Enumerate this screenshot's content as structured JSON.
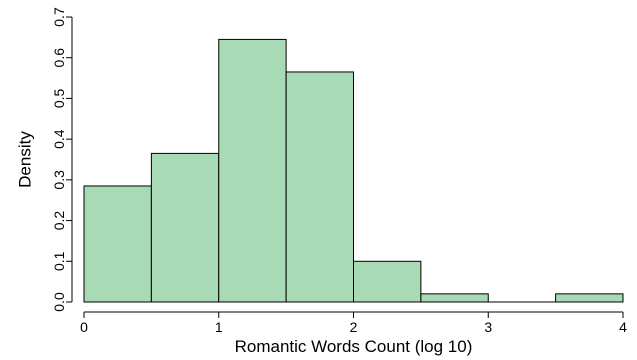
{
  "chart_data": {
    "type": "bar",
    "subtype": "histogram",
    "xlabel": "Romantic Words Count (log 10)",
    "ylabel": "Density",
    "xlim": [
      0,
      4
    ],
    "ylim": [
      0,
      0.7
    ],
    "x_ticks": [
      0,
      1,
      2,
      3,
      4
    ],
    "y_ticks": [
      0.0,
      0.1,
      0.2,
      0.3,
      0.4,
      0.5,
      0.6,
      0.7
    ],
    "y_tick_labels": [
      "0.0",
      "0.1",
      "0.2",
      "0.3",
      "0.4",
      "0.5",
      "0.6",
      "0.7"
    ],
    "bins": [
      {
        "x0": 0.0,
        "x1": 0.5,
        "value": 0.285
      },
      {
        "x0": 0.5,
        "x1": 1.0,
        "value": 0.365
      },
      {
        "x0": 1.0,
        "x1": 1.5,
        "value": 0.645
      },
      {
        "x0": 1.5,
        "x1": 2.0,
        "value": 0.565
      },
      {
        "x0": 2.0,
        "x1": 2.5,
        "value": 0.1
      },
      {
        "x0": 2.5,
        "x1": 3.0,
        "value": 0.02
      },
      {
        "x0": 3.0,
        "x1": 3.5,
        "value": 0.0
      },
      {
        "x0": 3.5,
        "x1": 4.0,
        "value": 0.02
      }
    ],
    "bar_color": "#a8dbb5",
    "grid": false,
    "legend": "none"
  }
}
